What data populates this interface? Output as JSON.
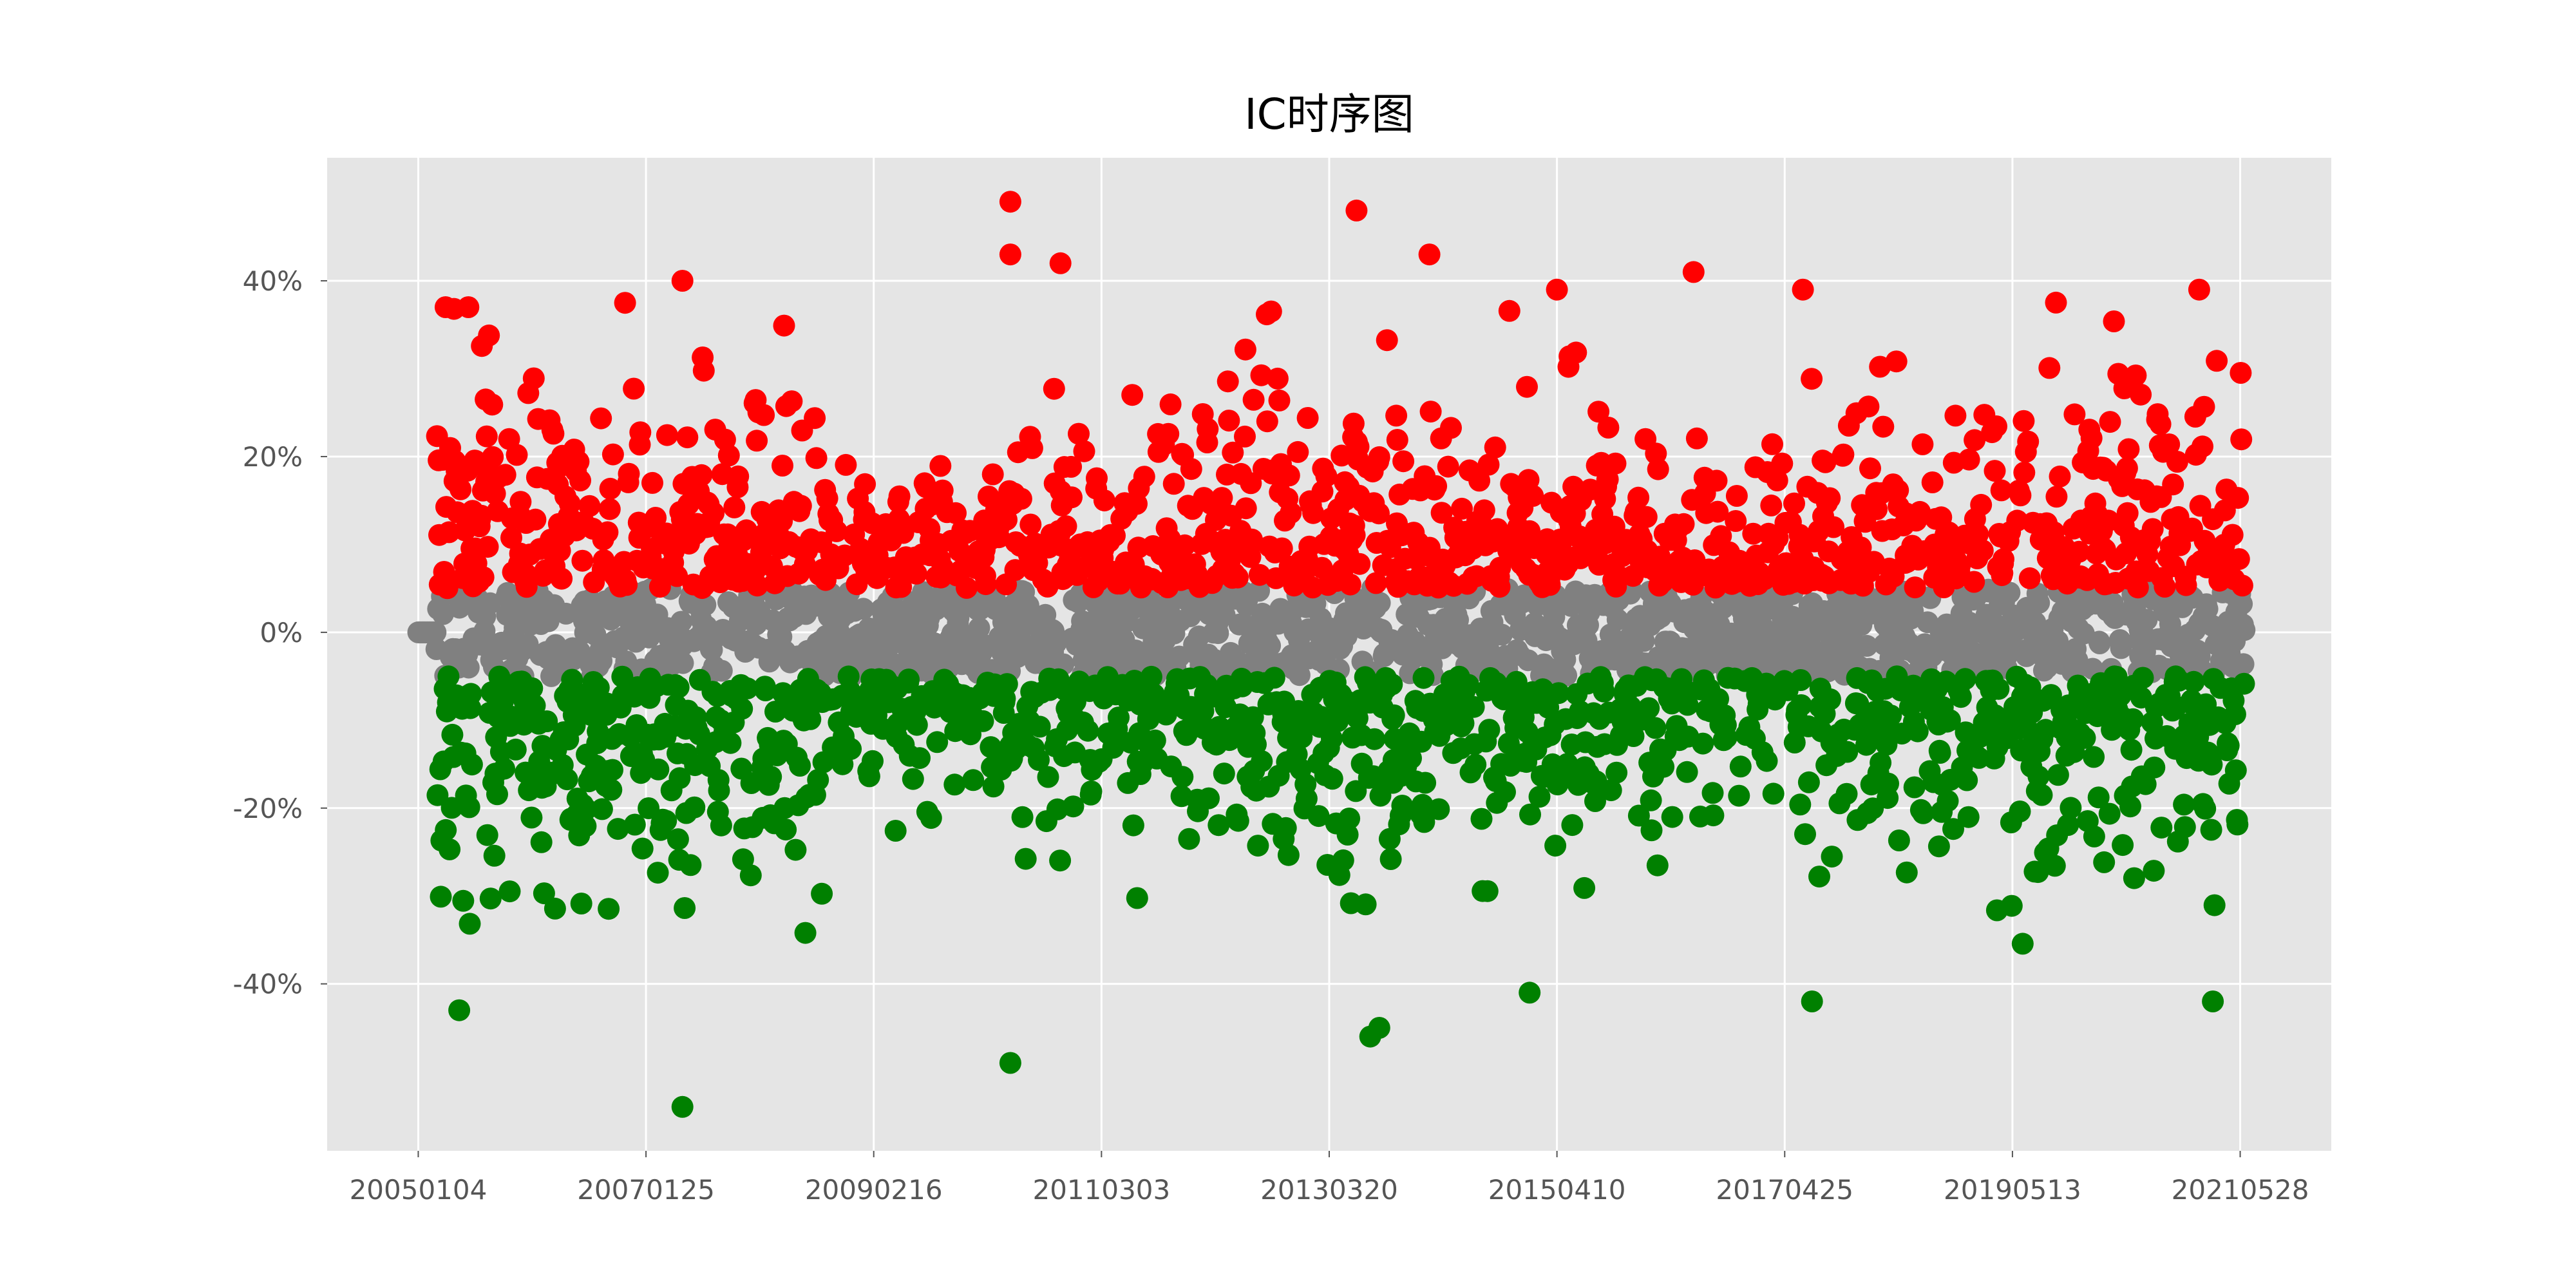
{
  "chart_data": {
    "type": "scatter",
    "title": "IC时序图",
    "xlabel": "",
    "ylabel": "",
    "x_tick_labels": [
      "20050104",
      "20070125",
      "20090216",
      "20110303",
      "20130320",
      "20150410",
      "20170425",
      "20190513",
      "20210528"
    ],
    "x_tick_positions": [
      0,
      500,
      1000,
      1500,
      2000,
      2500,
      3000,
      3500,
      4000
    ],
    "xlim": [
      -200,
      4200
    ],
    "ylim": [
      -0.59,
      0.54
    ],
    "y_ticks": [
      -0.4,
      -0.2,
      0.0,
      0.2,
      0.4
    ],
    "y_tick_labels": [
      "-40%",
      "-20%",
      "0%",
      "20%",
      "40%"
    ],
    "grid": true,
    "legend": "none",
    "colors": {
      "positive": "#ff0000",
      "near_zero": "#808080",
      "negative": "#008000",
      "plot_background": "#e5e5e5",
      "grid": "#ffffff"
    },
    "threshold": 0.05,
    "notable_points": [
      {
        "x": 60,
        "y": 0.37
      },
      {
        "x": 110,
        "y": 0.37
      },
      {
        "x": 580,
        "y": 0.4
      },
      {
        "x": 1300,
        "y": 0.49
      },
      {
        "x": 1300,
        "y": 0.43
      },
      {
        "x": 1410,
        "y": 0.42
      },
      {
        "x": 2060,
        "y": 0.48
      },
      {
        "x": 2220,
        "y": 0.43
      },
      {
        "x": 2500,
        "y": 0.39
      },
      {
        "x": 2800,
        "y": 0.41
      },
      {
        "x": 3040,
        "y": 0.39
      },
      {
        "x": 3910,
        "y": 0.39
      },
      {
        "x": 580,
        "y": -0.54
      },
      {
        "x": 1300,
        "y": -0.49
      },
      {
        "x": 90,
        "y": -0.43
      },
      {
        "x": 2090,
        "y": -0.46
      },
      {
        "x": 2110,
        "y": -0.45
      },
      {
        "x": 3060,
        "y": -0.42
      },
      {
        "x": 3940,
        "y": -0.42
      },
      {
        "x": 2440,
        "y": -0.41
      }
    ]
  }
}
